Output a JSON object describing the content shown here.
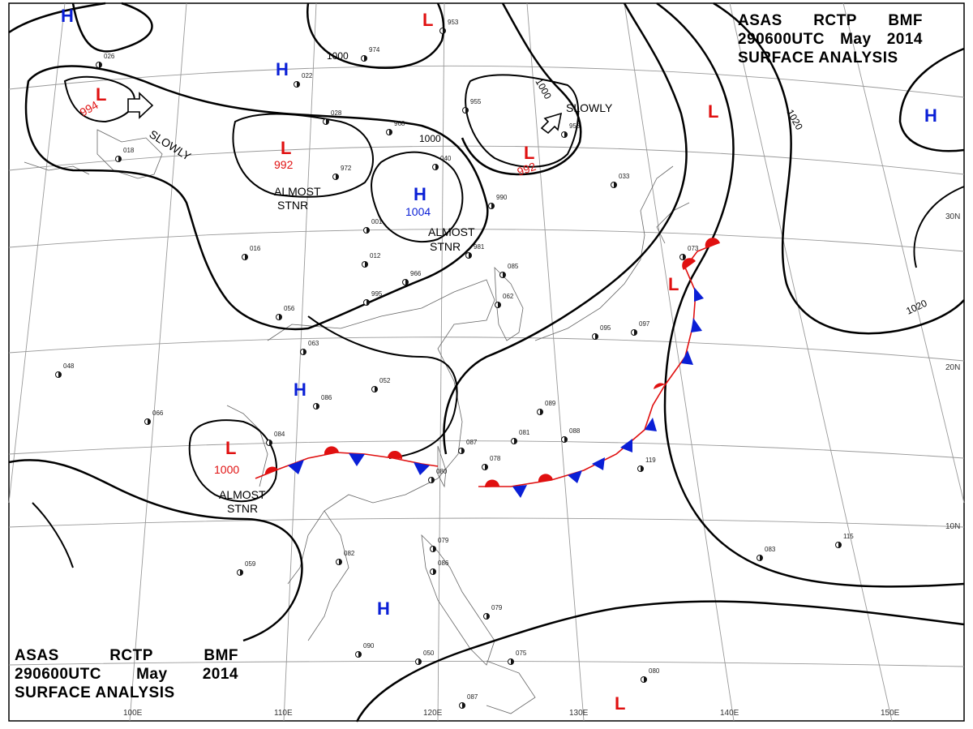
{
  "header": {
    "line1": [
      "ASAS",
      "RCTP",
      "BMF"
    ],
    "line2": [
      "290600UTC",
      "May",
      "2014"
    ],
    "line3": "SURFACE ANALYSIS"
  },
  "colors": {
    "high": "#0a1fd6",
    "low": "#e01010",
    "isobar": "#000000",
    "grid": "#888888",
    "coast": "#555555",
    "warm_front": "#e01010",
    "cold_front": "#0a1fd6"
  },
  "pressure_centers": [
    {
      "type": "H",
      "value": ""
    },
    {
      "type": "H",
      "value": ""
    },
    {
      "type": "H",
      "value": ""
    },
    {
      "type": "H",
      "value": ""
    },
    {
      "type": "H",
      "value": "1004"
    },
    {
      "type": "H",
      "value": ""
    },
    {
      "type": "L",
      "value": "994"
    },
    {
      "type": "L",
      "value": "992"
    },
    {
      "type": "L",
      "value": "992"
    },
    {
      "type": "L",
      "value": "1000"
    },
    {
      "type": "L",
      "value": ""
    },
    {
      "type": "L",
      "value": ""
    },
    {
      "type": "L",
      "value": ""
    },
    {
      "type": "L",
      "value": ""
    }
  ],
  "annotations": [
    "SLOWLY",
    "SLOWLY",
    "ALMOST",
    "STNR",
    "ALMOST",
    "STNR",
    "ALMOST",
    "STNR"
  ],
  "isobar_labels": [
    "1000",
    "1000",
    "1000",
    "1020",
    "1020"
  ],
  "latitude_labels": [
    "30N",
    "20N",
    "10N"
  ],
  "longitude_labels": [
    "100E",
    "110E",
    "120E",
    "130E",
    "140E",
    "150E"
  ],
  "station_numbers": [
    "026",
    "953",
    "974",
    "022",
    "028",
    "968",
    "972",
    "040",
    "955",
    "953",
    "990",
    "033",
    "018",
    "016",
    "001",
    "012",
    "981",
    "966",
    "995",
    "052",
    "085",
    "066",
    "080",
    "062",
    "048",
    "086",
    "063",
    "056",
    "081",
    "088",
    "087",
    "078",
    "084",
    "089",
    "095",
    "097",
    "073",
    "119",
    "115",
    "083",
    "059",
    "082",
    "090",
    "079",
    "086",
    "079",
    "075",
    "080",
    "087",
    "050"
  ]
}
